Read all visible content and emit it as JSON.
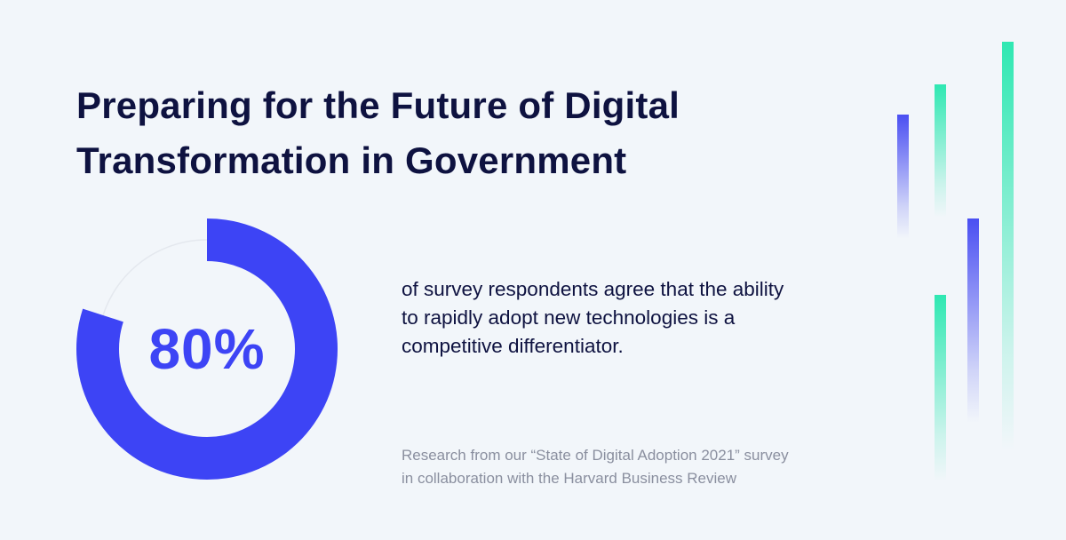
{
  "title_lines": [
    "Preparing for the Future of Digital",
    "Transformation in Government"
  ],
  "chart_data": {
    "type": "pie",
    "values": [
      80,
      20
    ],
    "value_label": "80%",
    "colors": {
      "filled": "#3d44f5",
      "track": "#e4e8ee"
    }
  },
  "stat_lines": [
    "of survey respondents agree that the ability",
    "to rapidly adopt new technologies is a",
    "competitive differentiator."
  ],
  "source_lines": [
    "Research from our “State of Digital Adoption 2021” survey",
    "in collaboration with the Harvard Business Review"
  ],
  "decor": {
    "blue": "#4a4ff2",
    "green": "#2fe8b2",
    "bars": [
      "blue",
      "green",
      "blue",
      "green",
      "green"
    ]
  }
}
